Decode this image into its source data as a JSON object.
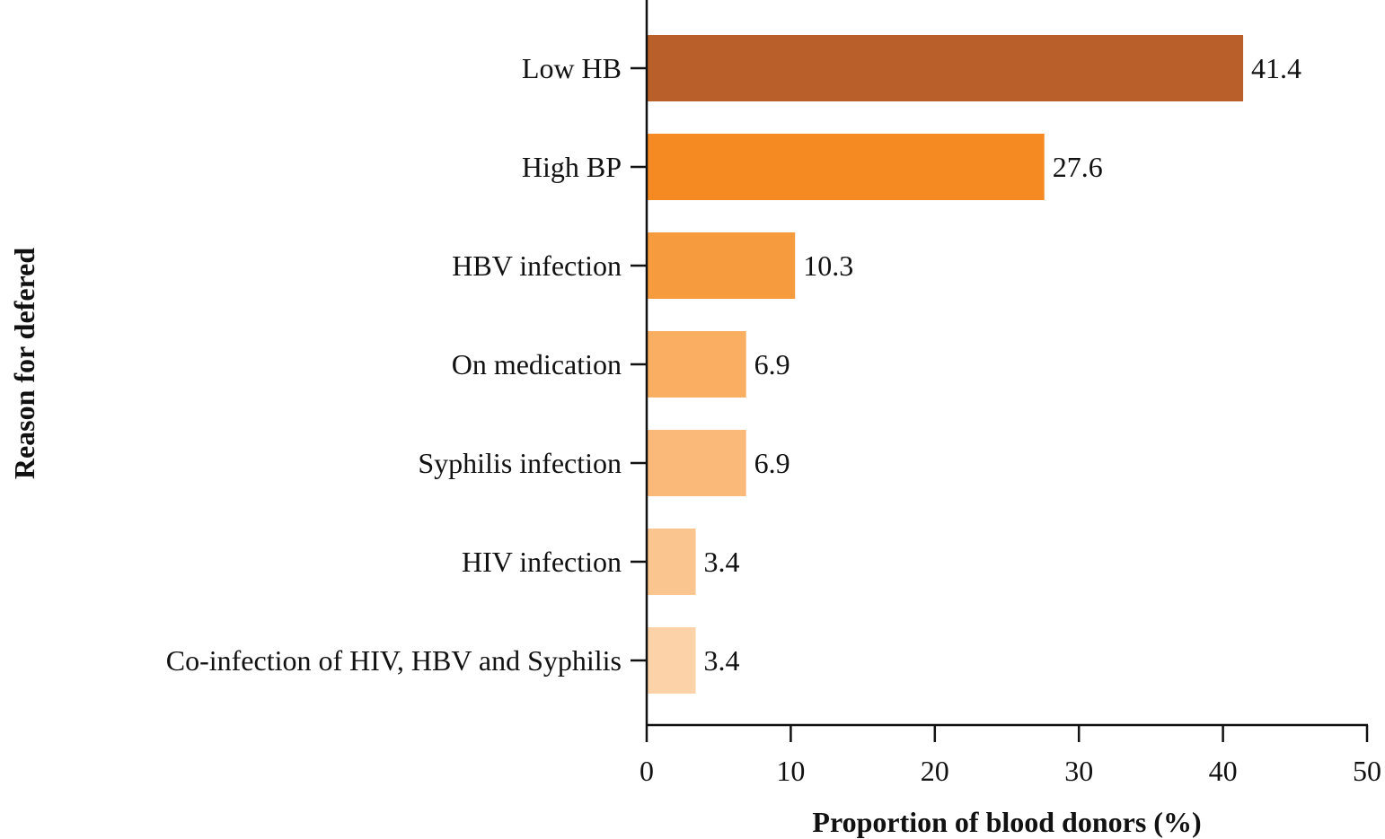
{
  "chart_data": {
    "type": "bar",
    "orientation": "horizontal",
    "title": "",
    "xlabel": "Proportion of blood donors (%)",
    "ylabel": "Reason for defered",
    "xlim": [
      0,
      50
    ],
    "xticks": [
      0,
      10,
      20,
      30,
      40,
      50
    ],
    "grid": false,
    "categories": [
      "Low HB",
      "High BP",
      "HBV infection",
      "On medication",
      "Syphilis infection",
      "HIV infection",
      "Co-infection of HIV, HBV and Syphilis"
    ],
    "values": [
      41.4,
      27.6,
      10.3,
      6.9,
      6.9,
      3.4,
      3.4
    ],
    "value_labels": [
      "41.4",
      "27.6",
      "10.3",
      "6.9",
      "6.9",
      "3.4",
      "3.4"
    ],
    "colors": [
      "#b9602a",
      "#f58a22",
      "#f79c3e",
      "#f9ae61",
      "#fab979",
      "#fbc58f",
      "#fcd2a8"
    ]
  }
}
